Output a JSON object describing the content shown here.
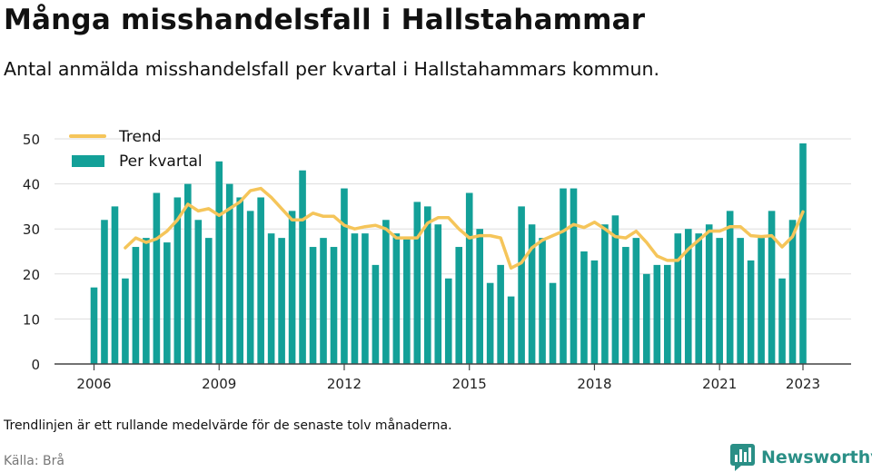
{
  "header": {
    "title": "Många misshandelsfall i Hallstahammar",
    "subtitle": "Antal anmälda misshandelsfall per kvartal i Hallstahammars kommun."
  },
  "footer": {
    "note": "Trendlinjen är ett rullande medelvärde för de senaste tolv månaderna.",
    "source": "Källa: Brå",
    "logo_text": "Newsworthy"
  },
  "colors": {
    "bar": "#13a098",
    "trend": "#f5c55a",
    "grid": "#dddddd",
    "axis": "#444444",
    "logo": "#2a8f86"
  },
  "chart_data": {
    "type": "bar",
    "title": "",
    "xlabel": "",
    "ylabel": "",
    "ylim": [
      0,
      50
    ],
    "yticks": [
      0,
      10,
      20,
      30,
      40,
      50
    ],
    "xticks": [
      2006,
      2009,
      2012,
      2015,
      2018,
      2021,
      2023
    ],
    "grid": true,
    "legend_position": "top-left",
    "start": "2006 Q1",
    "series": [
      {
        "name": "Per kvartal",
        "type": "bar",
        "values": [
          17,
          32,
          35,
          19,
          26,
          28,
          38,
          27,
          37,
          40,
          32,
          28,
          45,
          40,
          37,
          34,
          37,
          29,
          28,
          34,
          43,
          26,
          28,
          26,
          39,
          29,
          29,
          22,
          32,
          29,
          28,
          36,
          35,
          31,
          19,
          26,
          38,
          30,
          18,
          22,
          15,
          35,
          31,
          28,
          18,
          39,
          39,
          25,
          23,
          31,
          33,
          26,
          28,
          20,
          22,
          22,
          29,
          30,
          29,
          31,
          28,
          34,
          28,
          23,
          28,
          34,
          19,
          32,
          49
        ]
      },
      {
        "name": "Trend",
        "type": "line",
        "values": [
          null,
          null,
          null,
          25.8,
          28.0,
          27.0,
          27.8,
          29.5,
          32.0,
          35.5,
          34.0,
          34.5,
          33.0,
          34.5,
          36.0,
          38.5,
          39.0,
          37.0,
          34.5,
          32.0,
          32.0,
          33.5,
          32.8,
          32.8,
          30.8,
          30.0,
          30.5,
          30.8,
          30.0,
          28.0,
          28.0,
          28.0,
          31.3,
          32.5,
          32.5,
          30.0,
          28.0,
          28.5,
          28.5,
          28.0,
          21.3,
          22.5,
          25.8,
          27.5,
          28.5,
          29.5,
          31.0,
          30.3,
          31.5,
          30.0,
          28.3,
          28.0,
          29.5,
          27.0,
          24.0,
          23.0,
          23.0,
          25.5,
          27.5,
          29.5,
          29.5,
          30.5,
          30.5,
          28.5,
          28.3,
          28.5,
          26.0,
          28.3,
          33.8
        ]
      }
    ]
  }
}
